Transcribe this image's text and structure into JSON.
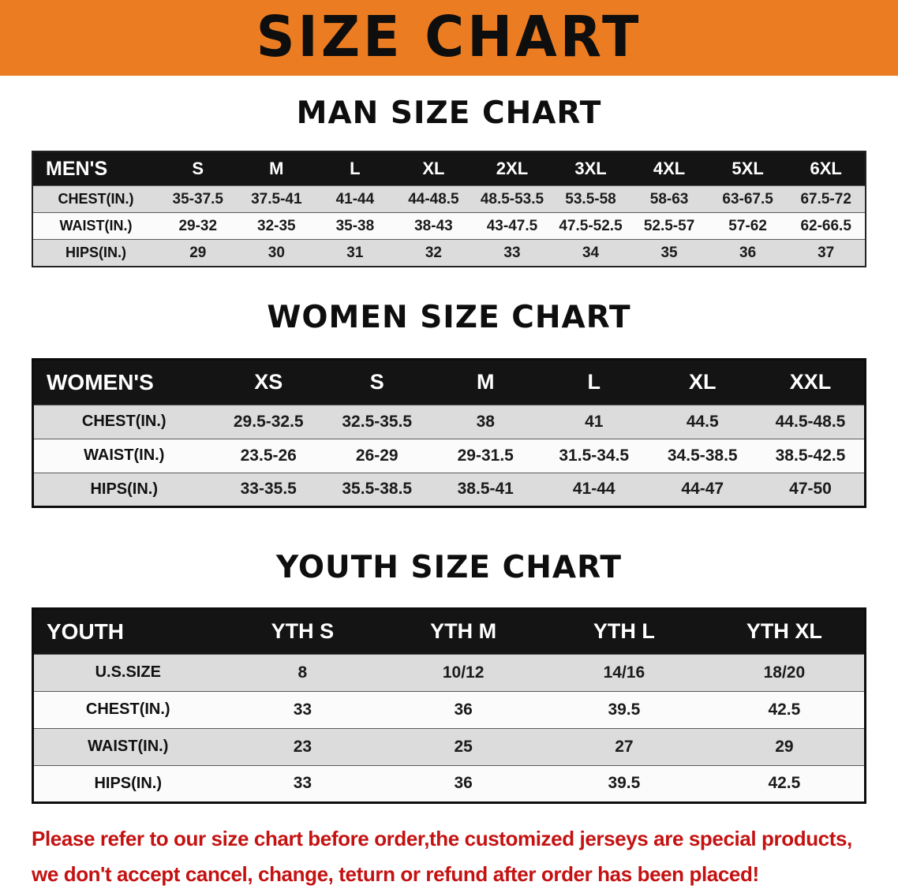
{
  "banner": {
    "title": "SIZE CHART"
  },
  "colors": {
    "banner_bg": "#EC7C21",
    "table_header_bg": "#141414",
    "row_shade": "#dcdcdc",
    "note_color": "#c41212"
  },
  "sections": [
    {
      "id": "men",
      "heading": "MAN SIZE CHART",
      "table": {
        "header": [
          "MEN'S",
          "S",
          "M",
          "L",
          "XL",
          "2XL",
          "3XL",
          "4XL",
          "5XL",
          "6XL"
        ],
        "rows": [
          {
            "label": "CHEST(IN.)",
            "values": [
              "35-37.5",
              "37.5-41",
              "41-44",
              "44-48.5",
              "48.5-53.5",
              "53.5-58",
              "58-63",
              "63-67.5",
              "67.5-72"
            ]
          },
          {
            "label": "WAIST(IN.)",
            "values": [
              "29-32",
              "32-35",
              "35-38",
              "38-43",
              "43-47.5",
              "47.5-52.5",
              "52.5-57",
              "57-62",
              "62-66.5"
            ]
          },
          {
            "label": "HIPS(IN.)",
            "values": [
              "29",
              "30",
              "31",
              "32",
              "33",
              "34",
              "35",
              "36",
              "37"
            ]
          }
        ]
      }
    },
    {
      "id": "women",
      "heading": "WOMEN SIZE CHART",
      "table": {
        "header": [
          "WOMEN'S",
          "XS",
          "S",
          "M",
          "L",
          "XL",
          "XXL"
        ],
        "rows": [
          {
            "label": "CHEST(IN.)",
            "values": [
              "29.5-32.5",
              "32.5-35.5",
              "38",
              "41",
              "44.5",
              "44.5-48.5"
            ]
          },
          {
            "label": "WAIST(IN.)",
            "values": [
              "23.5-26",
              "26-29",
              "29-31.5",
              "31.5-34.5",
              "34.5-38.5",
              "38.5-42.5"
            ]
          },
          {
            "label": "HIPS(IN.)",
            "values": [
              "33-35.5",
              "35.5-38.5",
              "38.5-41",
              "41-44",
              "44-47",
              "47-50"
            ]
          }
        ]
      }
    },
    {
      "id": "youth",
      "heading": "YOUTH SIZE CHART",
      "table": {
        "header": [
          "YOUTH",
          "YTH S",
          "YTH M",
          "YTH L",
          "YTH XL"
        ],
        "rows": [
          {
            "label": "U.S.SIZE",
            "values": [
              "8",
              "10/12",
              "14/16",
              "18/20"
            ]
          },
          {
            "label": "CHEST(IN.)",
            "values": [
              "33",
              "36",
              "39.5",
              "42.5"
            ]
          },
          {
            "label": "WAIST(IN.)",
            "values": [
              "23",
              "25",
              "27",
              "29"
            ]
          },
          {
            "label": "HIPS(IN.)",
            "values": [
              "33",
              "36",
              "39.5",
              "42.5"
            ]
          }
        ]
      }
    }
  ],
  "note": {
    "line1": "Please refer to our size chart before order,the customized jerseys are special products,",
    "line2": "we don't accept cancel, change, teturn or refund after order has been placed!"
  }
}
